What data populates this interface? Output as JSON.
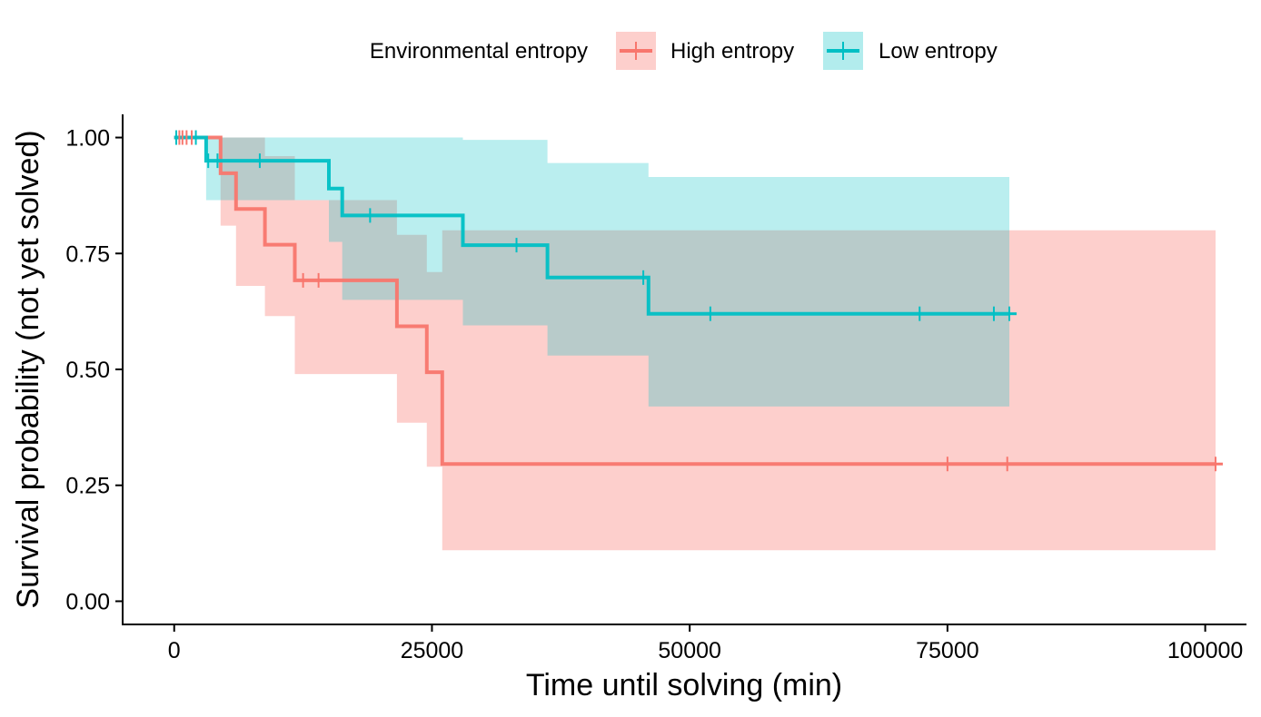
{
  "chart_data": {
    "type": "line",
    "xlabel": "Time until solving (min)",
    "ylabel": "Survival probability (not yet solved)",
    "xlim": [
      -5000,
      104000
    ],
    "ylim": [
      -0.05,
      1.05
    ],
    "x_ticks": [
      0,
      25000,
      50000,
      75000,
      100000
    ],
    "x_tick_labels": [
      "0",
      "25000",
      "50000",
      "75000",
      "100000"
    ],
    "y_ticks": [
      0,
      0.25,
      0.5,
      0.75,
      1.0
    ],
    "y_tick_labels": [
      "0.00",
      "0.25",
      "0.50",
      "0.75",
      "1.00"
    ],
    "grid": false,
    "legend": {
      "title": "Environmental entropy",
      "position": "top"
    },
    "series": [
      {
        "name": "High entropy",
        "color": "#F8766D",
        "steps": [
          [
            0,
            1.0
          ],
          [
            4500,
            0.923
          ],
          [
            6000,
            0.846
          ],
          [
            8800,
            0.769
          ],
          [
            11700,
            0.692
          ],
          [
            21600,
            0.593
          ],
          [
            24500,
            0.494
          ],
          [
            26000,
            0.296
          ],
          [
            101000,
            0.296
          ]
        ],
        "ci_steps": [
          [
            0,
            1.0,
            1.0
          ],
          [
            4500,
            0.81,
            1.0
          ],
          [
            6000,
            0.68,
            1.0
          ],
          [
            8800,
            0.615,
            0.96
          ],
          [
            11700,
            0.49,
            0.865
          ],
          [
            21600,
            0.385,
            0.79
          ],
          [
            24500,
            0.29,
            0.71
          ],
          [
            26000,
            0.11,
            0.8
          ],
          [
            101000,
            0.11,
            0.8
          ]
        ],
        "censored": [
          500,
          800,
          1200,
          1700,
          12500,
          14000,
          75000,
          80800,
          101000
        ]
      },
      {
        "name": "Low entropy",
        "color": "#00BFC4",
        "steps": [
          [
            0,
            1.0
          ],
          [
            3100,
            0.95
          ],
          [
            15000,
            0.89
          ],
          [
            16300,
            0.832
          ],
          [
            28000,
            0.768
          ],
          [
            36200,
            0.698
          ],
          [
            46000,
            0.62
          ],
          [
            81000,
            0.62
          ]
        ],
        "ci_steps": [
          [
            0,
            1.0,
            1.0
          ],
          [
            3100,
            0.865,
            1.0
          ],
          [
            15000,
            0.775,
            1.0
          ],
          [
            16300,
            0.65,
            1.0
          ],
          [
            28000,
            0.595,
            0.995
          ],
          [
            36200,
            0.53,
            0.945
          ],
          [
            46000,
            0.42,
            0.915
          ],
          [
            81000,
            0.42,
            0.915
          ]
        ],
        "censored": [
          200,
          2100,
          3300,
          4200,
          8300,
          19000,
          33200,
          45500,
          52000,
          72300,
          79500,
          81000
        ]
      }
    ]
  }
}
